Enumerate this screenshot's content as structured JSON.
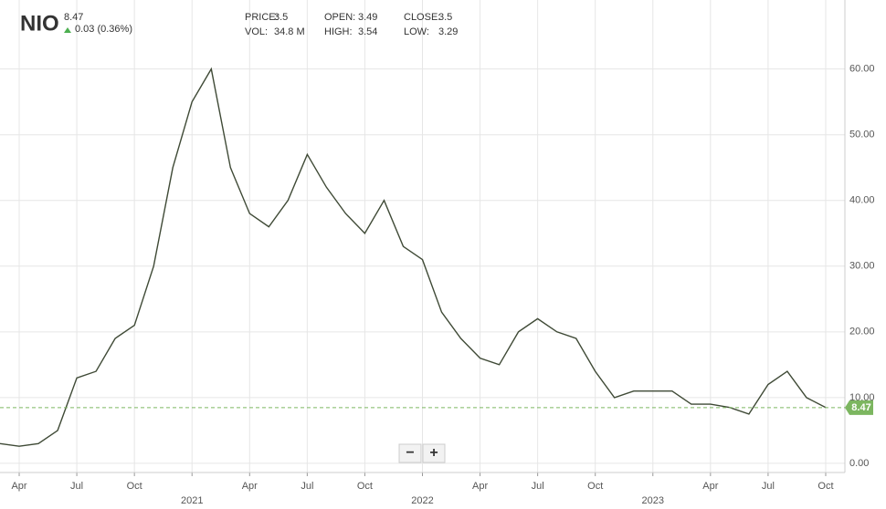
{
  "chart_data": {
    "type": "line",
    "symbol": "NIO",
    "last_price": 8.47,
    "change": "0.03 (0.36%)",
    "stats": [
      {
        "label": "PRICE:",
        "value": 3.5
      },
      {
        "label": "OPEN:",
        "value": 3.49
      },
      {
        "label": "CLOSE:",
        "value": 3.5
      },
      {
        "label": "VOL:",
        "value": "34.8 M"
      },
      {
        "label": "HIGH:",
        "value": 3.54
      },
      {
        "label": "LOW:",
        "value": 3.29
      }
    ],
    "zoom_out": "−",
    "zoom_in": "+",
    "x": [
      "2020-03",
      "2020-04",
      "2020-05",
      "2020-06",
      "2020-07",
      "2020-08",
      "2020-09",
      "2020-10",
      "2020-11",
      "2020-12",
      "2021-01",
      "2021-02",
      "2021-03",
      "2021-04",
      "2021-05",
      "2021-06",
      "2021-07",
      "2021-08",
      "2021-09",
      "2021-10",
      "2021-11",
      "2021-12",
      "2022-01",
      "2022-02",
      "2022-03",
      "2022-04",
      "2022-05",
      "2022-06",
      "2022-07",
      "2022-08",
      "2022-09",
      "2022-10",
      "2022-11",
      "2022-12",
      "2023-01",
      "2023-02",
      "2023-03",
      "2023-04",
      "2023-05",
      "2023-06",
      "2023-07",
      "2023-08",
      "2023-09",
      "2023-10"
    ],
    "series": [
      {
        "color": "#3f4a36",
        "values": [
          3.0,
          2.6,
          3.0,
          5.0,
          13,
          14,
          19,
          21,
          30,
          45,
          55,
          60,
          45,
          38,
          36,
          40,
          47,
          42,
          38,
          35,
          40,
          33,
          31,
          23,
          19,
          16,
          15,
          20,
          22,
          20,
          19,
          14,
          10,
          11,
          11,
          11,
          9,
          9,
          8.5,
          7.5,
          12,
          14,
          10,
          8.5
        ]
      }
    ],
    "xlim": [
      "2020-03",
      "2023-11"
    ],
    "xticks": [
      {
        "value": "2020-04",
        "label": "Apr"
      },
      {
        "value": "2020-07",
        "label": "Jul"
      },
      {
        "value": "2020-10",
        "label": "Oct"
      },
      {
        "value": "2021-01",
        "label": "2021"
      },
      {
        "value": "2021-04",
        "label": "Apr"
      },
      {
        "value": "2021-07",
        "label": "Jul"
      },
      {
        "value": "2021-10",
        "label": "Oct"
      },
      {
        "value": "2022-01",
        "label": "2022"
      },
      {
        "value": "2022-04",
        "label": "Apr"
      },
      {
        "value": "2022-07",
        "label": "Jul"
      },
      {
        "value": "2022-10",
        "label": "Oct"
      },
      {
        "value": "2023-01",
        "label": "2023"
      },
      {
        "value": "2023-04",
        "label": "Apr"
      },
      {
        "value": "2023-07",
        "label": "Jul"
      },
      {
        "value": "2023-10",
        "label": "Oct"
      }
    ],
    "ylim": [
      -1.4,
      70.5
    ],
    "yticks": [
      {
        "value": 0,
        "label": "0.00"
      },
      {
        "value": 10,
        "label": "10.00"
      },
      {
        "value": 20,
        "label": "20.00"
      },
      {
        "value": 30,
        "label": "30.00"
      },
      {
        "value": 40,
        "label": "40.00"
      },
      {
        "value": 50,
        "label": "50.00"
      },
      {
        "value": 60,
        "label": "60.00"
      }
    ],
    "grid": true,
    "last_color": "#7cb660"
  }
}
